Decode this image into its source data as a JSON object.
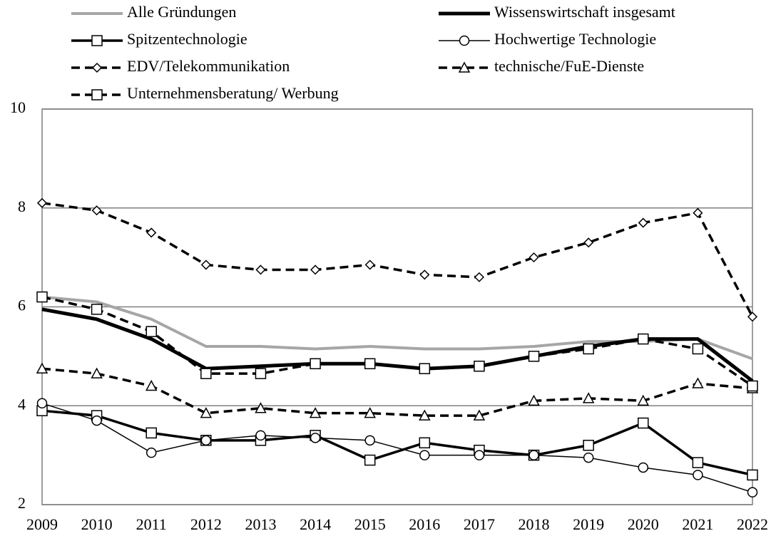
{
  "chart_data": {
    "type": "line",
    "x": [
      2009,
      2010,
      2011,
      2012,
      2013,
      2014,
      2015,
      2016,
      2017,
      2018,
      2019,
      2020,
      2021,
      2022
    ],
    "xlim": [
      2009,
      2022
    ],
    "xticks": [
      2009,
      2010,
      2011,
      2012,
      2013,
      2014,
      2015,
      2016,
      2017,
      2018,
      2019,
      2020,
      2021,
      2022
    ],
    "ylim": [
      2,
      10
    ],
    "yticks": [
      2,
      4,
      6,
      8,
      10
    ],
    "grid": true,
    "series": [
      {
        "name": "Alle Gründungen",
        "color": "#a6a6a6",
        "width": 4,
        "dash": "solid",
        "marker": "none",
        "values": [
          6.2,
          6.1,
          5.75,
          5.2,
          5.2,
          5.15,
          5.2,
          5.15,
          5.15,
          5.2,
          5.3,
          5.3,
          5.35,
          4.95
        ]
      },
      {
        "name": "Wissenswirtschaft insgesamt",
        "color": "#000000",
        "width": 5,
        "dash": "solid",
        "marker": "none",
        "values": [
          5.95,
          5.75,
          5.35,
          4.75,
          4.8,
          4.85,
          4.85,
          4.75,
          4.8,
          5.0,
          5.2,
          5.35,
          5.35,
          4.5
        ]
      },
      {
        "name": "Spitzentechnologie",
        "color": "#000000",
        "width": 3.5,
        "dash": "solid",
        "marker": "square",
        "values": [
          3.9,
          3.8,
          3.45,
          3.3,
          3.3,
          3.4,
          2.9,
          3.25,
          3.1,
          3.0,
          3.2,
          3.65,
          2.85,
          2.6
        ]
      },
      {
        "name": "Hochwertige Technologie",
        "color": "#000000",
        "width": 1.5,
        "dash": "solid",
        "marker": "circle",
        "values": [
          4.05,
          3.7,
          3.05,
          3.3,
          3.4,
          3.35,
          3.3,
          3.0,
          3.0,
          3.0,
          2.95,
          2.75,
          2.6,
          2.25
        ]
      },
      {
        "name": "EDV/Telekommunikation",
        "color": "#000000",
        "width": 3.5,
        "dash": "dashed",
        "marker": "diamond",
        "values": [
          8.1,
          7.95,
          7.5,
          6.85,
          6.75,
          6.75,
          6.85,
          6.65,
          6.6,
          7.0,
          7.3,
          7.7,
          7.9,
          5.8
        ]
      },
      {
        "name": "technische/FuE-Dienste",
        "color": "#000000",
        "width": 3.5,
        "dash": "dashed",
        "marker": "triangle",
        "values": [
          4.75,
          4.65,
          4.4,
          3.85,
          3.95,
          3.85,
          3.85,
          3.8,
          3.8,
          4.1,
          4.15,
          4.1,
          4.45,
          4.35
        ]
      },
      {
        "name": "Unternehmensberatung/ Werbung",
        "color": "#000000",
        "width": 3.5,
        "dash": "dashed",
        "marker": "square",
        "values": [
          6.2,
          5.95,
          5.5,
          4.65,
          4.65,
          4.85,
          4.85,
          4.75,
          4.8,
          5.0,
          5.15,
          5.35,
          5.15,
          4.4
        ]
      }
    ]
  }
}
